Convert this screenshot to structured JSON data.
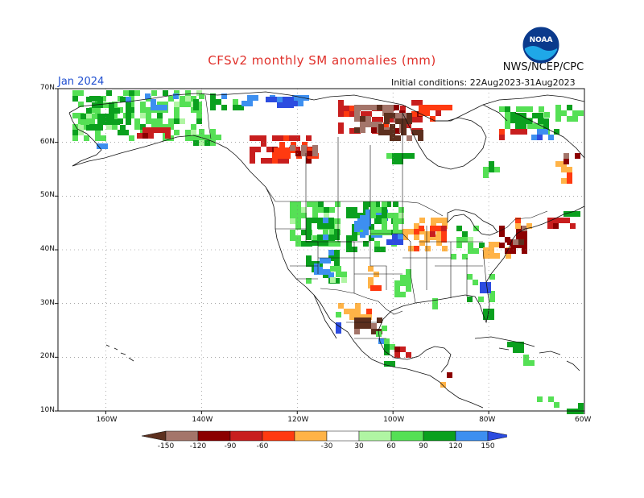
{
  "title": "CFSv2 monthly SM anomalies (mm)",
  "org": "NWS/NCEP/CPC",
  "month": "Jan 2024",
  "initial_conditions": "Initial conditions: 22Aug2023-31Aug2023",
  "logo_text": "NOAA",
  "map": {
    "lon_range": [
      -170,
      -60
    ],
    "lat_range": [
      10,
      70
    ],
    "lat_labels": [
      "70N",
      "60N",
      "50N",
      "40N",
      "30N",
      "20N",
      "10N"
    ],
    "lat_values": [
      70,
      60,
      50,
      40,
      30,
      20,
      10
    ],
    "lon_labels": [
      "160W",
      "140W",
      "120W",
      "100W",
      "80W",
      "60W"
    ],
    "lon_values": [
      -160,
      -140,
      -120,
      -100,
      -80,
      -60
    ]
  },
  "legend": {
    "labels": [
      "-150",
      "-120",
      "-90",
      "-60",
      "-30",
      "30",
      "60",
      "90",
      "120",
      "150"
    ],
    "colors": [
      "#5c2f1e",
      "#a4756a",
      "#8b0000",
      "#c81e1e",
      "#ff3a10",
      "#ffb347",
      "#ffffff",
      "#b0f5a3",
      "#55e055",
      "#0aa01e",
      "#3d8ff0",
      "#2c4ce0"
    ]
  }
}
